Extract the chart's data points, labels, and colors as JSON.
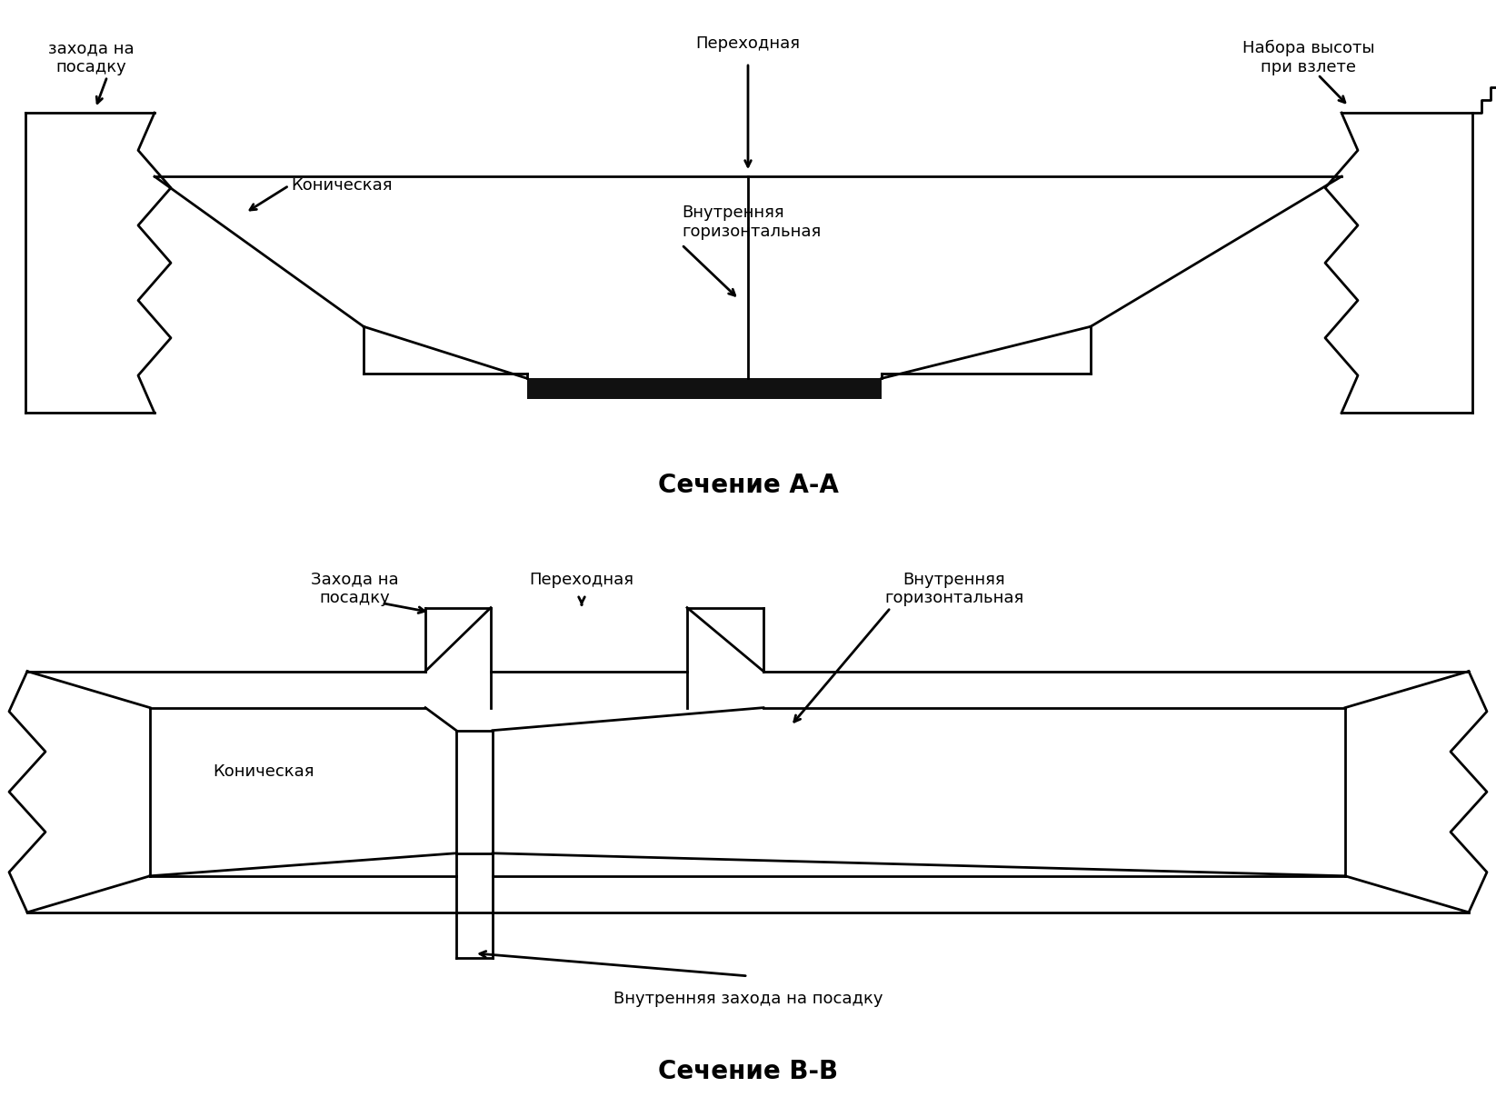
{
  "title_aa": "Сечение А-А",
  "title_bb": "Сечение В-В",
  "label_zakhodna_top": "захода на\nпосадку",
  "label_nabora": "Набора высоты\nпри взлете",
  "label_perekhodnaya_aa": "Переходная",
  "label_konicheskaya_aa": "Коническая",
  "label_vnutrennaya_aa": "Внутренняя\nгоризонтальная",
  "label_zakhodna_bb": "Захода на\nпосадку",
  "label_perekhodnaya_bb": "Переходная",
  "label_vnutrennaya_bb": "Внутренняя\nгоризонтальная",
  "label_konicheskaya_bb": "Коническая",
  "label_vnutr_zakhod": "Внутренняя захода на посадку",
  "line_color": "#000000",
  "runway_color": "#111111",
  "bg_color": "#ffffff",
  "lw": 2.0
}
